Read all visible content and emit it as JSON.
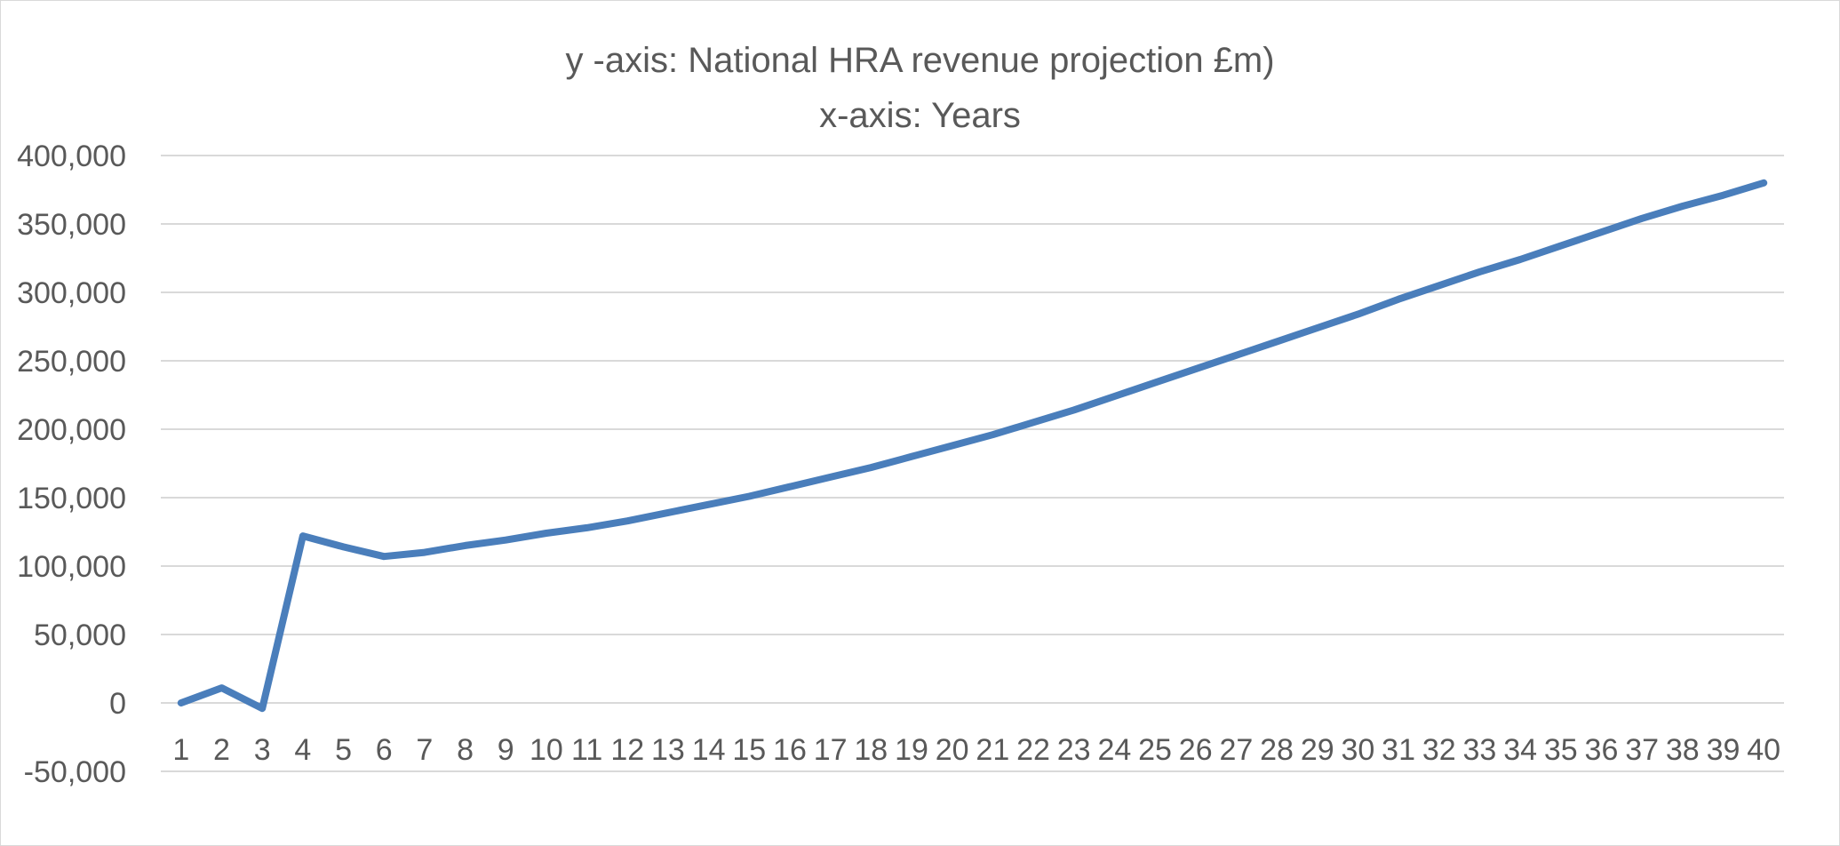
{
  "chart_data": {
    "type": "line",
    "title_lines": [
      "y -axis: National HRA revenue projection £m)",
      "x-axis: Years"
    ],
    "xlabel": "",
    "ylabel": "",
    "x": [
      1,
      2,
      3,
      4,
      5,
      6,
      7,
      8,
      9,
      10,
      11,
      12,
      13,
      14,
      15,
      16,
      17,
      18,
      19,
      20,
      21,
      22,
      23,
      24,
      25,
      26,
      27,
      28,
      29,
      30,
      31,
      32,
      33,
      34,
      35,
      36,
      37,
      38,
      39,
      40
    ],
    "y_ticks": [
      "-50,000",
      "0",
      "50,000",
      "100,000",
      "150,000",
      "200,000",
      "250,000",
      "300,000",
      "350,000",
      "400,000"
    ],
    "ylim": [
      -50000,
      400000
    ],
    "grid": true,
    "legend": "none",
    "series": [
      {
        "color": "#4a7ebb",
        "values": [
          0,
          11000,
          -4000,
          122000,
          114000,
          107000,
          110000,
          115000,
          119000,
          124000,
          128000,
          133000,
          139000,
          145000,
          151000,
          158000,
          165000,
          172000,
          180000,
          188000,
          196000,
          205000,
          214000,
          224000,
          234000,
          244000,
          254000,
          264000,
          274000,
          284000,
          295000,
          305000,
          315000,
          324000,
          334000,
          344000,
          354000,
          363000,
          371000,
          380000
        ]
      }
    ]
  }
}
